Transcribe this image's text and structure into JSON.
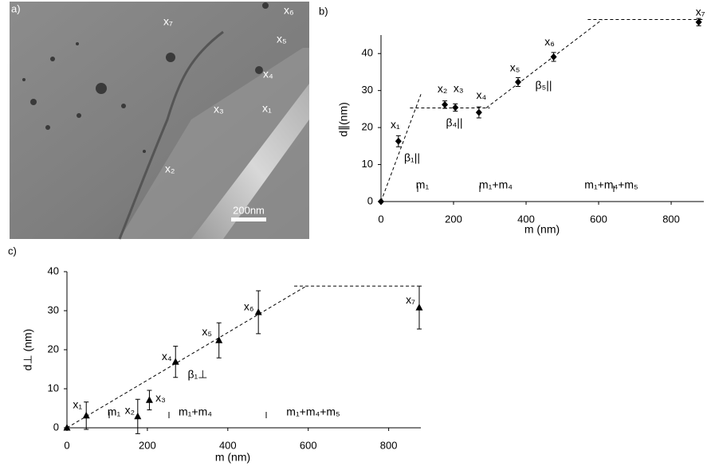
{
  "image_panel": {
    "panel_label": "a)",
    "point_labels": [
      "x₁",
      "x₂",
      "x₃",
      "x₄",
      "x₅",
      "x₆",
      "x₇"
    ],
    "scale_bar": "200nm"
  },
  "chart_data": [
    {
      "type": "scatter",
      "panel_label": "b)",
      "x_label": "m (nm)",
      "y_label": "d∥(nm)",
      "xlim": [
        0,
        890
      ],
      "ylim": [
        0,
        45
      ],
      "xticks": [
        0,
        200,
        400,
        600,
        800
      ],
      "yticks": [
        0,
        10,
        20,
        30,
        40
      ],
      "x": [
        0,
        48,
        176,
        205,
        270,
        378,
        476,
        876
      ],
      "series": [
        {
          "color": "#000000",
          "marker": "diamond",
          "values": [
            0,
            16.3,
            26.2,
            25.4,
            24.1,
            32.3,
            39.1,
            48.5
          ],
          "errors": [
            0,
            1.5,
            1,
            1,
            1.5,
            1.2,
            1.2,
            1
          ],
          "point_labels": [
            null,
            "x₁",
            "x₂",
            "x₃",
            "x₄",
            "x₅",
            "x₆",
            "x₇"
          ]
        }
      ],
      "fit_lines": [
        {
          "x": [
            0,
            110
          ],
          "y": [
            0,
            29
          ]
        },
        {
          "x": [
            80,
            300
          ],
          "y": [
            25.3,
            25.3
          ]
        },
        {
          "x": [
            290,
            610
          ],
          "y": [
            25.3,
            49.2
          ]
        },
        {
          "x": [
            570,
            890
          ],
          "y": [
            49.2,
            49.2
          ]
        }
      ],
      "annotations": [
        "m₁",
        "m₁+m₄",
        "m₁+m₄+m₅",
        "β₁||",
        "β₄||",
        "β₅||"
      ]
    },
    {
      "type": "scatter",
      "panel_label": "c)",
      "x_label": "m (nm)",
      "y_label": "d⊥ (nm)",
      "xlim": [
        0,
        880
      ],
      "ylim": [
        0,
        40
      ],
      "xticks": [
        0,
        200,
        400,
        600,
        800
      ],
      "yticks": [
        0,
        10,
        20,
        30,
        40
      ],
      "x": [
        0,
        48,
        176,
        205,
        270,
        378,
        476,
        876
      ],
      "series": [
        {
          "color": "#000000",
          "marker": "triangle",
          "values": [
            0,
            3.1,
            2.9,
            7.1,
            16.9,
            22.4,
            29.6,
            30.8
          ],
          "errors": [
            0,
            3.5,
            4.4,
            2.5,
            4,
            4.5,
            5.5,
            5.5
          ],
          "point_labels": [
            null,
            "x₁",
            "x₂",
            "x₃",
            "x₄",
            "x₅",
            "x₆",
            "x₇"
          ]
        }
      ],
      "fit_lines": [
        {
          "x": [
            0,
            595
          ],
          "y": [
            0,
            36.3
          ]
        },
        {
          "x": [
            565,
            870
          ],
          "y": [
            36.3,
            36.3
          ]
        }
      ],
      "annotations": [
        "m₁",
        "m₁+m₄",
        "m₁+m₄+m₅",
        "β₁⊥"
      ]
    }
  ]
}
